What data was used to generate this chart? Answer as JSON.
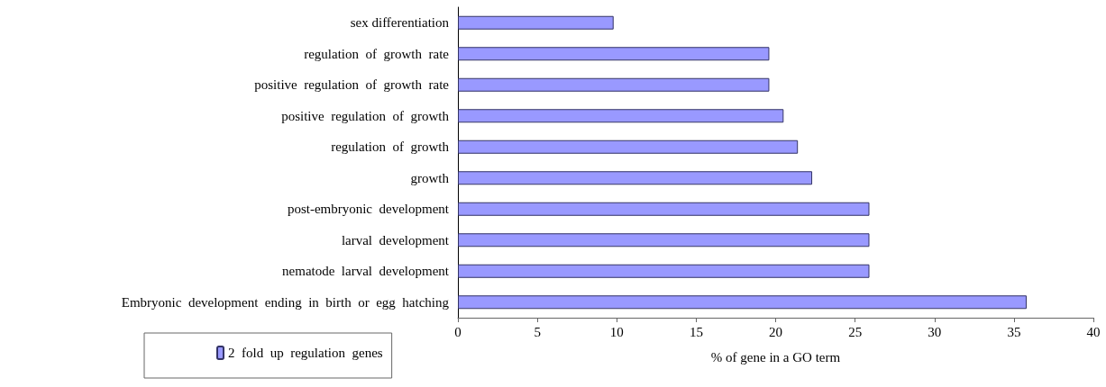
{
  "chart_data": {
    "type": "bar",
    "orientation": "horizontal",
    "xlabel": "% of gene in a GO term",
    "categories": [
      "sex differentiation",
      "regulation  of  growth  rate",
      "positive  regulation  of  growth  rate",
      "positive  regulation  of  growth",
      "regulation  of  growth",
      "growth",
      "post-embryonic  development",
      "larval  development",
      "nematode  larval  development",
      "Embryonic  development  ending  in  birth  or  egg  hatching"
    ],
    "series": [
      {
        "name": "2  fold  up  regulation  genes",
        "color": "#9999ff",
        "values": [
          9.8,
          19.6,
          19.6,
          20.5,
          21.4,
          22.3,
          25.9,
          25.9,
          25.9,
          35.8
        ]
      }
    ],
    "xlim": [
      0,
      40
    ],
    "xticks": [
      0,
      5,
      10,
      15,
      20,
      25,
      30,
      35,
      40
    ],
    "grid": false,
    "legend": "bottom left"
  }
}
